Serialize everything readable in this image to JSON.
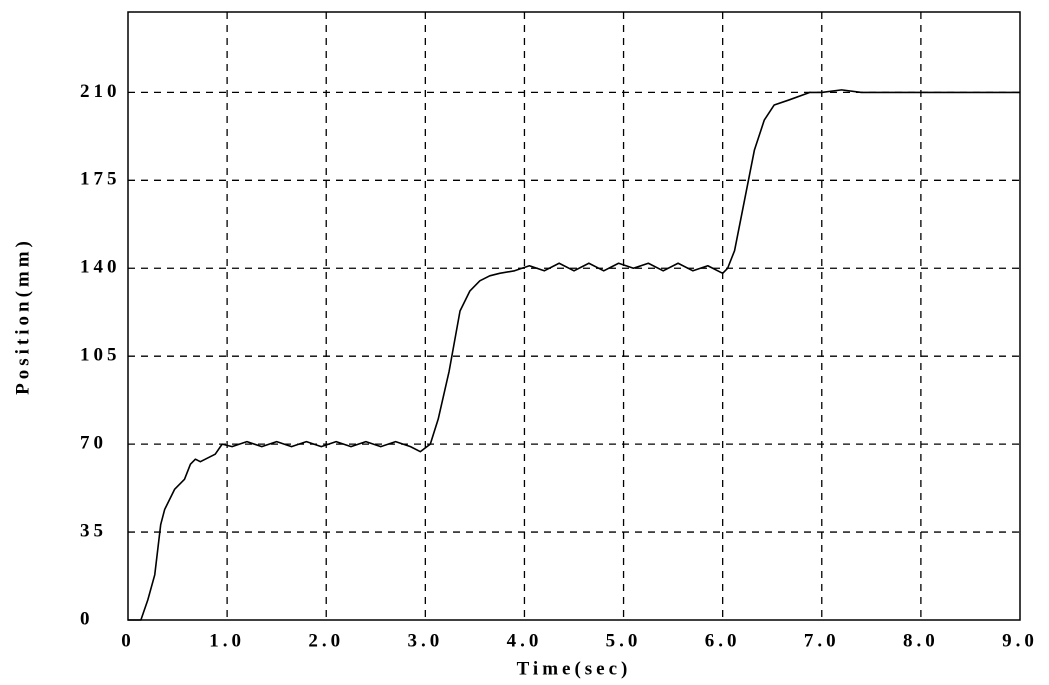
{
  "chart_data": {
    "type": "line",
    "xlabel": "Time(sec)",
    "ylabel": "Position(mm)",
    "xlim": [
      0,
      9
    ],
    "ylim": [
      0,
      242
    ],
    "xticks": [
      0,
      {
        "value": 1,
        "label": "1.0"
      },
      {
        "value": 2,
        "label": "2.0"
      },
      {
        "value": 3,
        "label": "3.0"
      },
      {
        "value": 4,
        "label": "4.0"
      },
      {
        "value": 5,
        "label": "5.0"
      },
      {
        "value": 6,
        "label": "6.0"
      },
      {
        "value": 7,
        "label": "7.0"
      },
      {
        "value": 8,
        "label": "8.0"
      },
      {
        "value": 9,
        "label": "9.0"
      }
    ],
    "yticks": [
      0,
      35,
      70,
      105,
      140,
      175,
      210
    ],
    "grid": true,
    "series": [
      {
        "color": "#000000",
        "x": [
          0,
          0.13,
          0.2,
          0.27,
          0.33,
          0.37,
          0.47,
          0.57,
          0.63,
          0.68,
          0.73,
          0.78,
          0.88,
          0.95,
          1.05,
          1.2,
          1.35,
          1.5,
          1.65,
          1.8,
          1.95,
          2.1,
          2.25,
          2.4,
          2.55,
          2.7,
          2.85,
          2.95,
          3.05,
          3.13,
          3.24,
          3.35,
          3.45,
          3.55,
          3.65,
          3.75,
          3.9,
          4.05,
          4.2,
          4.35,
          4.5,
          4.65,
          4.8,
          4.95,
          5.1,
          5.25,
          5.4,
          5.55,
          5.7,
          5.85,
          6.0,
          6.05,
          6.12,
          6.22,
          6.32,
          6.42,
          6.52,
          6.67,
          6.88,
          7.0,
          7.2,
          7.4,
          7.6,
          8.0,
          9.0
        ],
        "values": [
          0,
          0,
          8,
          18,
          38,
          44,
          52,
          56,
          62,
          64,
          63,
          64,
          66,
          70,
          69,
          71,
          69,
          71,
          69,
          71,
          69,
          71,
          69,
          71,
          69,
          71,
          69,
          67,
          70,
          80,
          99,
          123,
          131,
          135,
          137,
          138,
          139,
          141,
          139,
          142,
          139,
          142,
          139,
          142,
          140,
          142,
          139,
          142,
          139,
          141,
          138,
          140,
          147,
          167,
          187,
          199,
          205,
          207,
          210,
          210,
          211,
          210,
          210,
          210,
          210
        ]
      }
    ]
  }
}
